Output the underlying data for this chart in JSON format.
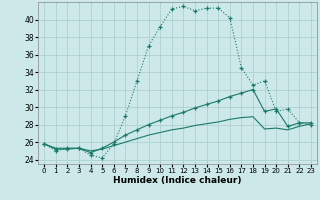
{
  "xlabel": "Humidex (Indice chaleur)",
  "bg_color": "#cce8e8",
  "grid_color": "#b0d0d0",
  "line_color": "#1a7a6a",
  "xlim": [
    -0.5,
    23.5
  ],
  "ylim": [
    23.5,
    42.0
  ],
  "yticks": [
    24,
    26,
    28,
    30,
    32,
    34,
    36,
    38,
    40
  ],
  "xticks": [
    0,
    1,
    2,
    3,
    4,
    5,
    6,
    7,
    8,
    9,
    10,
    11,
    12,
    13,
    14,
    15,
    16,
    17,
    18,
    19,
    20,
    21,
    22,
    23
  ],
  "series1_x": [
    0,
    1,
    2,
    3,
    4,
    5,
    6,
    7,
    8,
    9,
    10,
    11,
    12,
    13,
    14,
    15,
    16,
    17,
    18,
    19,
    20,
    21,
    22,
    23
  ],
  "series1_y": [
    25.8,
    25.0,
    25.3,
    25.3,
    24.5,
    24.2,
    25.8,
    29.0,
    33.0,
    37.0,
    39.2,
    41.2,
    41.5,
    41.0,
    41.3,
    41.3,
    40.2,
    34.5,
    32.5,
    33.0,
    29.5,
    29.8,
    28.2,
    28.0
  ],
  "series2_x": [
    0,
    1,
    2,
    3,
    4,
    5,
    6,
    7,
    8,
    9,
    10,
    11,
    12,
    13,
    14,
    15,
    16,
    17,
    18,
    19,
    20,
    21,
    22,
    23
  ],
  "series2_y": [
    25.8,
    25.2,
    25.2,
    25.3,
    24.8,
    25.3,
    26.0,
    26.8,
    27.4,
    28.0,
    28.5,
    29.0,
    29.4,
    29.9,
    30.3,
    30.7,
    31.2,
    31.6,
    32.0,
    29.5,
    29.8,
    27.8,
    28.2,
    28.2
  ],
  "series3_x": [
    0,
    1,
    2,
    3,
    4,
    5,
    6,
    7,
    8,
    9,
    10,
    11,
    12,
    13,
    14,
    15,
    16,
    17,
    18,
    19,
    20,
    21,
    22,
    23
  ],
  "series3_y": [
    25.8,
    25.3,
    25.3,
    25.3,
    25.0,
    25.2,
    25.6,
    26.0,
    26.4,
    26.8,
    27.1,
    27.4,
    27.6,
    27.9,
    28.1,
    28.3,
    28.6,
    28.8,
    28.9,
    27.5,
    27.6,
    27.4,
    27.8,
    28.1
  ]
}
